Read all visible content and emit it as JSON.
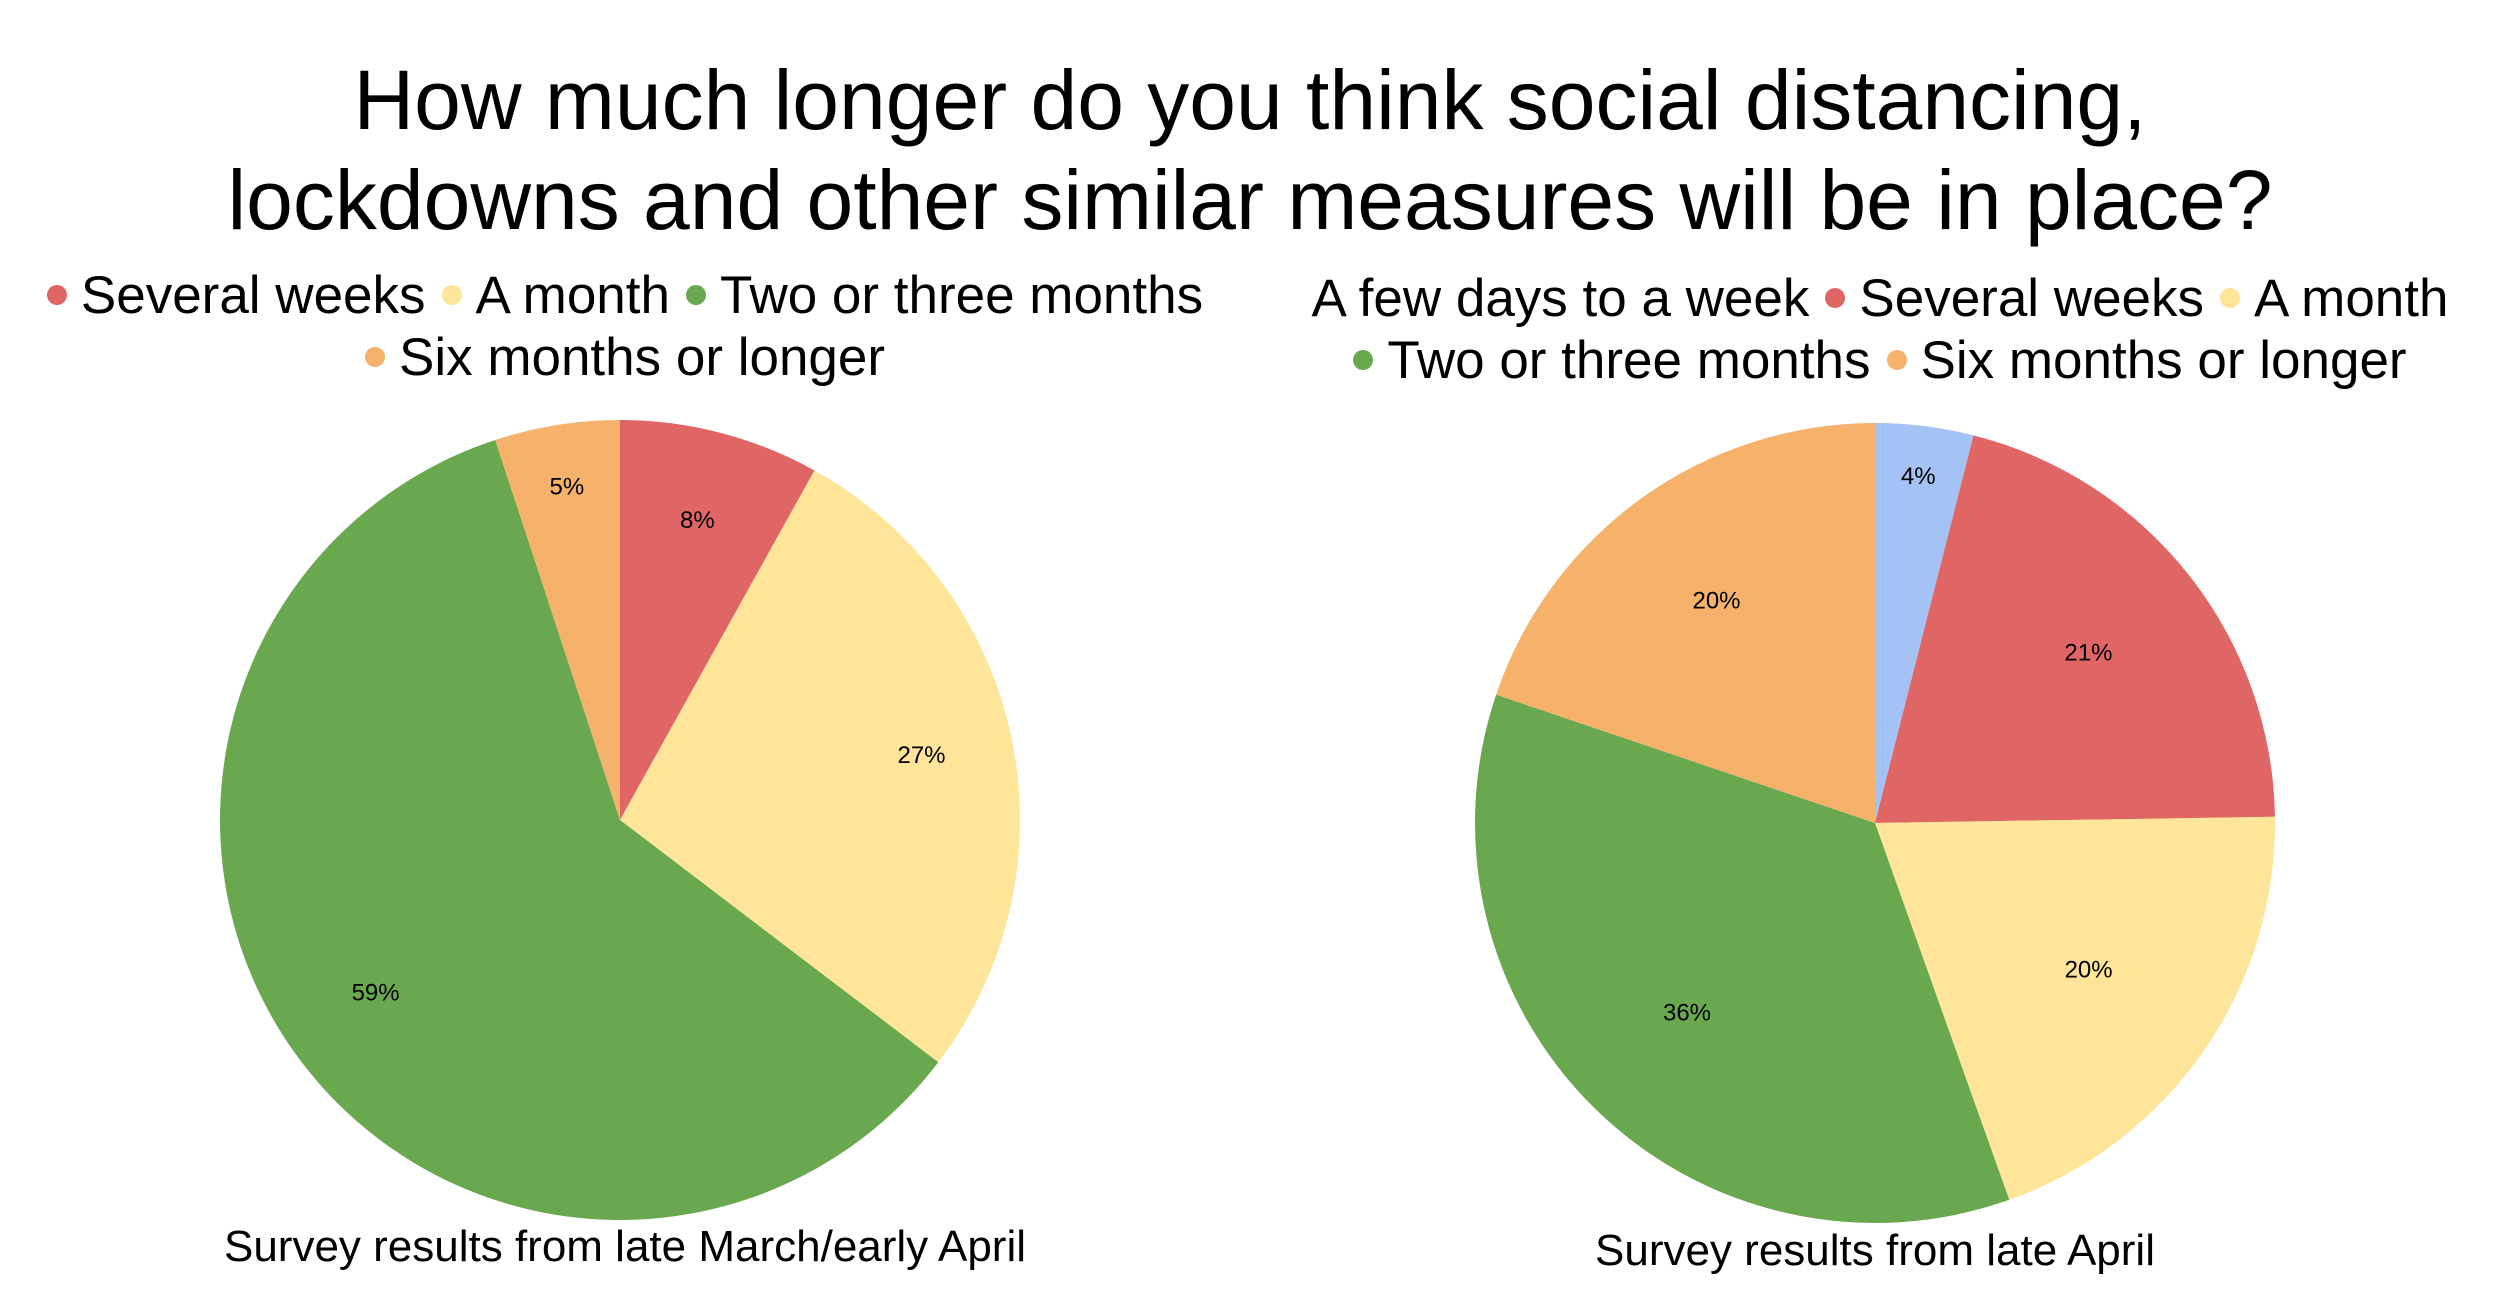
{
  "title": {
    "line1": "How much longer do you think social distancing,",
    "line2": "lockdowns and other similar measures will be in place?"
  },
  "colors": {
    "A few days to a week": "#a4c2f4",
    "Several weeks": "#e06666",
    "A month": "#ffe599",
    "Two or three months": "#6aa84f",
    "Six months or longer": "#f6b26b"
  },
  "chart_data": [
    {
      "type": "pie",
      "caption": "Survey results from late March/early April",
      "legend_rows": [
        [
          {
            "label": "Several weeks",
            "dot": true
          },
          {
            "label": "A month",
            "dot": true
          },
          {
            "label": "Two or three months",
            "dot": true
          }
        ],
        [
          {
            "label": "Six months or longer",
            "dot": true
          }
        ]
      ],
      "slices": [
        {
          "label": "Several weeks",
          "value": 8,
          "display": "8%"
        },
        {
          "label": "A month",
          "value": 27,
          "display": "27%"
        },
        {
          "label": "Two or three months",
          "value": 59,
          "display": "59%"
        },
        {
          "label": "Six months or longer",
          "value": 5,
          "display": "5%"
        }
      ]
    },
    {
      "type": "pie",
      "caption": "Survey results from late April",
      "legend_rows": [
        [
          {
            "label": "A few days to a week",
            "dot": false
          },
          {
            "label": "Several weeks",
            "dot": true
          },
          {
            "label": "A month",
            "dot": true
          }
        ],
        [
          {
            "label": "Two or three months",
            "dot": true
          },
          {
            "label": "Six months or longer",
            "dot": true
          }
        ]
      ],
      "slices": [
        {
          "label": "A few days to a week",
          "value": 4,
          "display": "4%"
        },
        {
          "label": "Several weeks",
          "value": 21,
          "display": "21%"
        },
        {
          "label": "A month",
          "value": 20,
          "display": "20%"
        },
        {
          "label": "Two or three months",
          "value": 36,
          "display": "36%"
        },
        {
          "label": "Six months or longer",
          "value": 20,
          "display": "20%"
        }
      ]
    }
  ]
}
